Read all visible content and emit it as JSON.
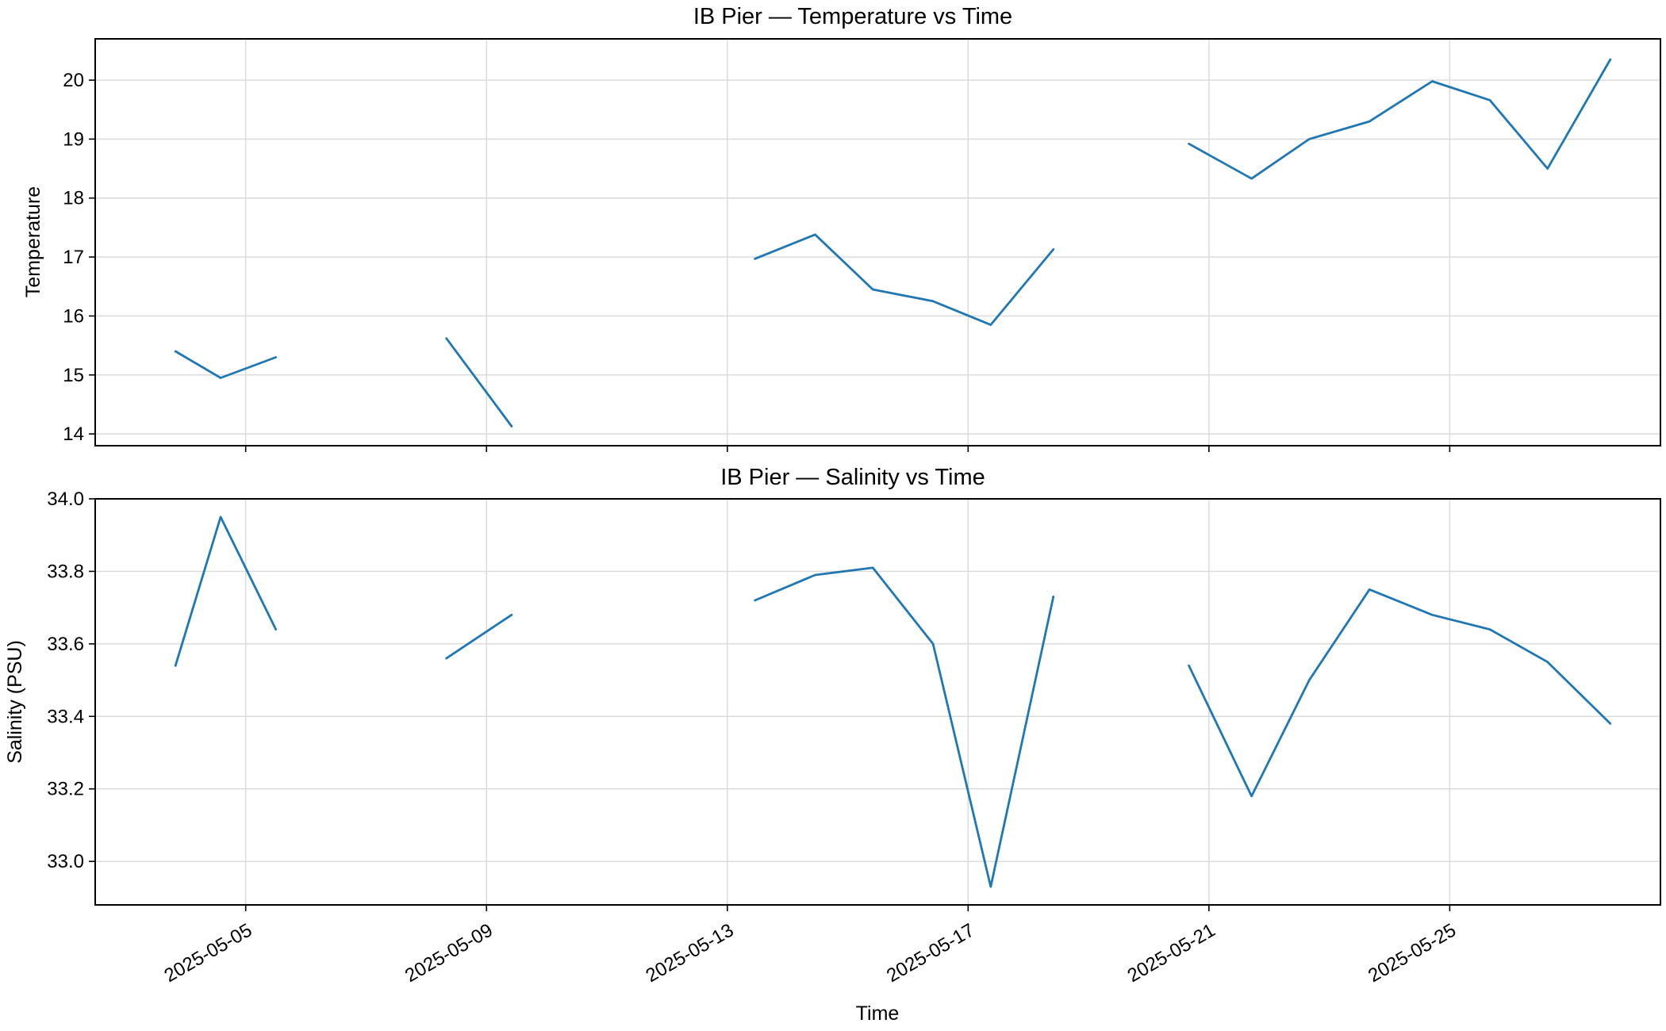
{
  "chart_data": [
    {
      "type": "line",
      "title": "IB Pier — Temperature vs Time",
      "xlabel": "",
      "ylabel": "Temperature",
      "xlim": [
        "2025-05-02T12:00",
        "2025-05-28T12:00"
      ],
      "ylim": [
        13.8,
        20.7
      ],
      "yticks": [
        "14",
        "15",
        "16",
        "17",
        "18",
        "19",
        "20"
      ],
      "xticks": [],
      "grid": true,
      "color": "#1f77b4",
      "segments": [
        [
          [
            "2025-05-03T20:00",
            15.4
          ],
          [
            "2025-05-04T14:00",
            14.95
          ],
          [
            "2025-05-05T12:00",
            15.3
          ]
        ],
        [
          [
            "2025-05-08T08:00",
            15.62
          ],
          [
            "2025-05-09T10:00",
            14.13
          ]
        ],
        [
          [
            "2025-05-13T11:00",
            16.97
          ],
          [
            "2025-05-14T11:00",
            17.38
          ],
          [
            "2025-05-15T10:00",
            16.45
          ],
          [
            "2025-05-16T10:00",
            16.25
          ],
          [
            "2025-05-17T09:00",
            15.85
          ],
          [
            "2025-05-18T10:00",
            17.13
          ]
        ],
        [
          [
            "2025-05-20T16:00",
            18.92
          ],
          [
            "2025-05-21T17:00",
            18.33
          ],
          [
            "2025-05-22T16:00",
            19.0
          ],
          [
            "2025-05-23T16:00",
            19.3
          ],
          [
            "2025-05-24T17:00",
            19.98
          ],
          [
            "2025-05-25T16:00",
            19.66
          ],
          [
            "2025-05-26T15:00",
            18.5
          ],
          [
            "2025-05-27T16:00",
            20.35
          ]
        ]
      ]
    },
    {
      "type": "line",
      "title": "IB Pier — Salinity vs Time",
      "xlabel": "Time",
      "ylabel": "Salinity (PSU)",
      "xlim": [
        "2025-05-02T12:00",
        "2025-05-28T12:00"
      ],
      "ylim": [
        32.88,
        34.0
      ],
      "yticks": [
        "33.0",
        "33.2",
        "33.4",
        "33.6",
        "33.8",
        "34.0"
      ],
      "xticks": [
        "2025-05-05",
        "2025-05-09",
        "2025-05-13",
        "2025-05-17",
        "2025-05-21",
        "2025-05-25"
      ],
      "grid": true,
      "color": "#1f77b4",
      "segments": [
        [
          [
            "2025-05-03T20:00",
            33.54
          ],
          [
            "2025-05-04T14:00",
            33.95
          ],
          [
            "2025-05-05T12:00",
            33.64
          ]
        ],
        [
          [
            "2025-05-08T08:00",
            33.56
          ],
          [
            "2025-05-09T10:00",
            33.68
          ]
        ],
        [
          [
            "2025-05-13T11:00",
            33.72
          ],
          [
            "2025-05-14T11:00",
            33.79
          ],
          [
            "2025-05-15T10:00",
            33.81
          ],
          [
            "2025-05-16T10:00",
            33.6
          ],
          [
            "2025-05-17T09:00",
            32.93
          ],
          [
            "2025-05-18T10:00",
            33.73
          ]
        ],
        [
          [
            "2025-05-20T16:00",
            33.54
          ],
          [
            "2025-05-21T17:00",
            33.18
          ],
          [
            "2025-05-22T16:00",
            33.5
          ],
          [
            "2025-05-23T16:00",
            33.75
          ],
          [
            "2025-05-24T17:00",
            33.68
          ],
          [
            "2025-05-25T16:00",
            33.64
          ],
          [
            "2025-05-26T15:00",
            33.55
          ],
          [
            "2025-05-27T16:00",
            33.38
          ]
        ]
      ]
    }
  ]
}
